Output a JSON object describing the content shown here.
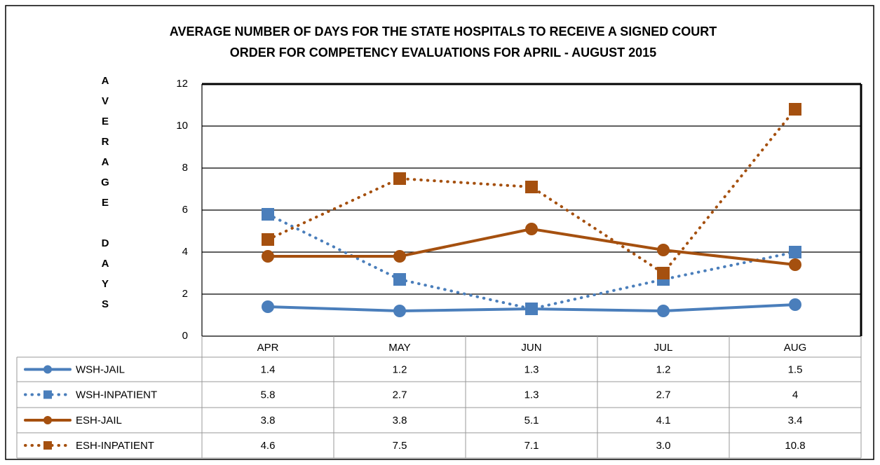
{
  "chart_data": {
    "type": "line",
    "title": [
      "AVERAGE NUMBER OF DAYS FOR THE STATE HOSPITALS TO RECEIVE A SIGNED COURT",
      "ORDER FOR COMPETENCY EVALUATIONS FOR APRIL - AUGUST 2015"
    ],
    "y_label": "AVERAGE DAYS",
    "categories": [
      "APR",
      "MAY",
      "JUN",
      "JUL",
      "AUG"
    ],
    "ylim": [
      0,
      12
    ],
    "yticks": [
      0,
      2,
      4,
      6,
      8,
      10,
      12
    ],
    "grid": true,
    "series": [
      {
        "name": "WSH-JAIL",
        "color": "#4a7ebb",
        "dash": false,
        "marker": "circle",
        "values": [
          1.4,
          1.2,
          1.3,
          1.2,
          1.5
        ]
      },
      {
        "name": "WSH-INPATIENT",
        "color": "#4a7ebb",
        "dash": true,
        "marker": "square",
        "values": [
          5.8,
          2.7,
          1.3,
          2.7,
          4
        ]
      },
      {
        "name": "ESH-JAIL",
        "color": "#a5500f",
        "dash": false,
        "marker": "circle",
        "values": [
          3.8,
          3.8,
          5.1,
          4.1,
          3.4
        ]
      },
      {
        "name": "ESH-INPATIENT",
        "color": "#a5500f",
        "dash": true,
        "marker": "square",
        "values": [
          4.6,
          7.5,
          7.1,
          3.0,
          10.8
        ],
        "value_labels": [
          "4.6",
          "7.5",
          "7.1",
          "3.0",
          "10.8"
        ]
      }
    ]
  }
}
